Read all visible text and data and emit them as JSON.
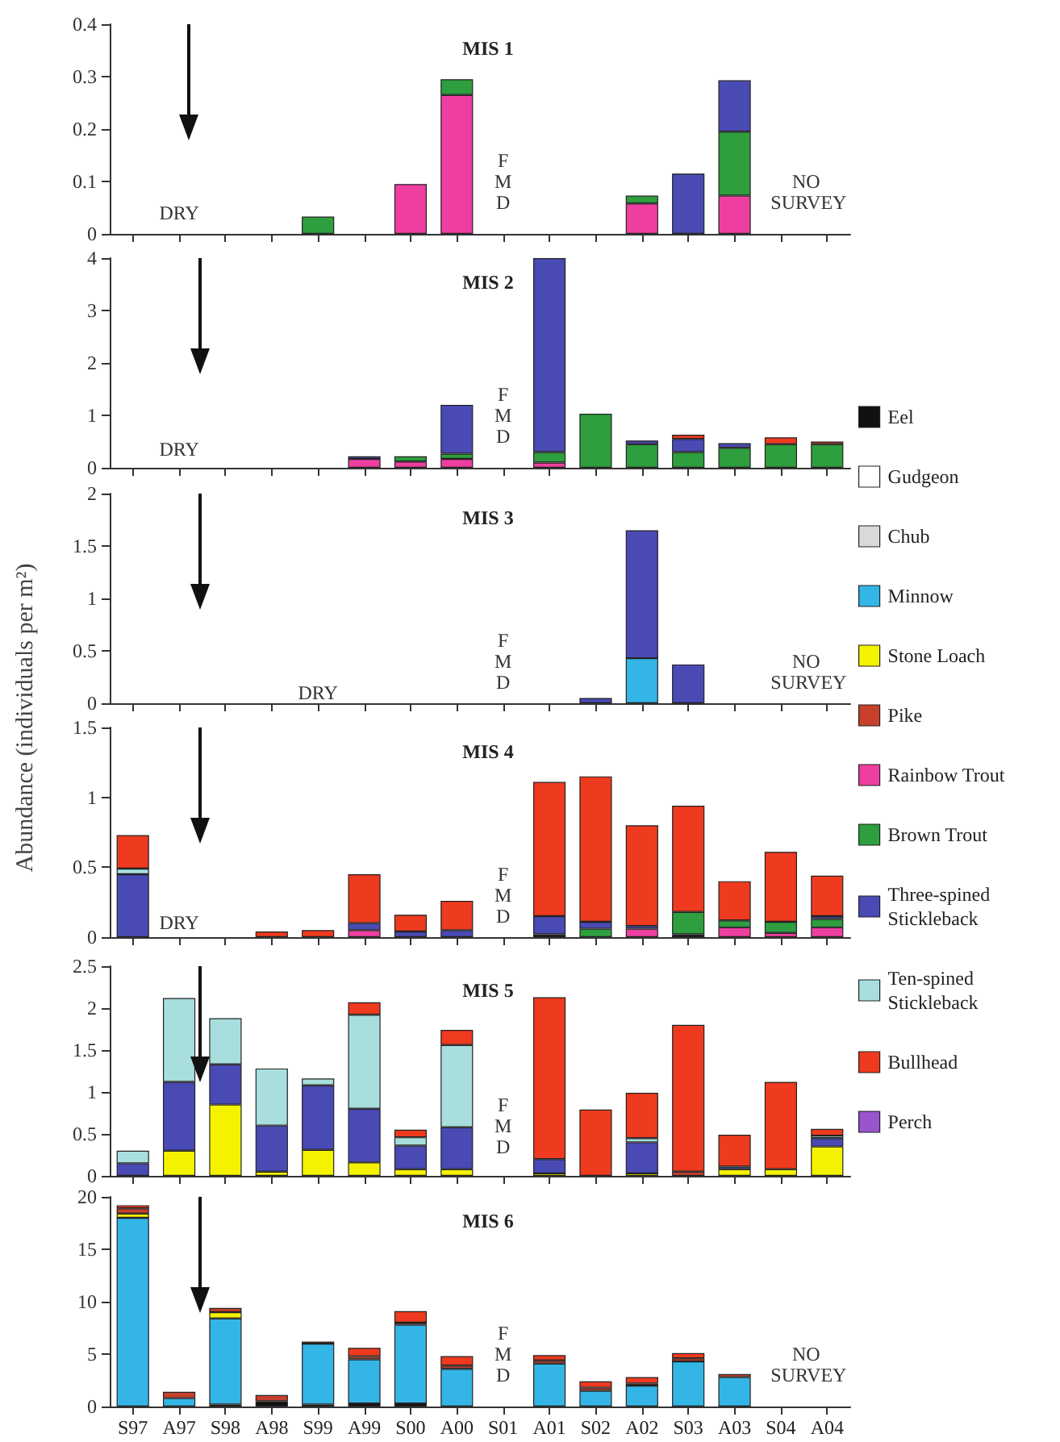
{
  "chart_data": [
    {
      "type": "bar",
      "stacked": true,
      "title": "MIS 1",
      "tick_labels": "y",
      "categories": [
        null,
        null,
        null,
        null,
        null,
        null,
        null,
        null,
        null,
        null,
        null,
        null,
        null,
        null,
        null,
        null
      ],
      "ylim": [
        0,
        0.4
      ],
      "yticks": [
        0,
        0.1,
        0.2,
        0.3,
        0.4
      ],
      "series": [
        {
          "color": "#ee3fa0",
          "values": [
            null,
            null,
            null,
            null,
            null,
            null,
            0.095,
            0.265,
            null,
            null,
            null,
            0.058,
            null,
            0.073,
            null,
            null
          ]
        },
        {
          "color": "#2e9e3e",
          "values": [
            null,
            null,
            null,
            null,
            0.033,
            null,
            null,
            0.03,
            null,
            null,
            null,
            0.015,
            null,
            0.122,
            null,
            null
          ]
        },
        {
          "color": "#4a4ab5",
          "values": [
            null,
            null,
            null,
            null,
            null,
            null,
            null,
            null,
            null,
            null,
            null,
            null,
            0.115,
            0.098,
            null,
            null
          ]
        }
      ],
      "annotations": [
        "DRY",
        "F\nM\nD",
        "NO SURVEY"
      ]
    },
    {
      "type": "bar",
      "stacked": true,
      "title": "MIS 2",
      "tick_labels": "y",
      "legend": "right",
      "ylabel": "Abundance (individuals per m²)",
      "categories": [
        null,
        null,
        null,
        null,
        null,
        null,
        null,
        null,
        null,
        null,
        null,
        null,
        null,
        null,
        null,
        null
      ],
      "ylim": [
        0,
        4
      ],
      "yticks": [
        0,
        1,
        2,
        3,
        4
      ],
      "series": [
        {
          "name": "Eel",
          "color": "#111111",
          "values": [
            null,
            null,
            null,
            null,
            null,
            null,
            null,
            null,
            null,
            null,
            null,
            null,
            null,
            null,
            null,
            null
          ]
        },
        {
          "name": "Gudgeon",
          "color": "#ffffff",
          "values": [
            null,
            null,
            null,
            null,
            null,
            null,
            null,
            null,
            null,
            null,
            null,
            null,
            null,
            null,
            null,
            null
          ]
        },
        {
          "name": "Chub",
          "color": "#d9d9d9",
          "values": [
            null,
            null,
            null,
            null,
            null,
            null,
            null,
            null,
            null,
            null,
            null,
            null,
            null,
            null,
            null,
            null
          ]
        },
        {
          "name": "Minnow",
          "color": "#33b5e5",
          "values": [
            null,
            null,
            null,
            null,
            null,
            null,
            null,
            null,
            null,
            null,
            null,
            null,
            null,
            null,
            null,
            null
          ]
        },
        {
          "name": "Stone Loach",
          "color": "#f5f200",
          "values": [
            null,
            null,
            null,
            null,
            null,
            null,
            null,
            null,
            null,
            null,
            null,
            null,
            null,
            null,
            null,
            null
          ]
        },
        {
          "name": "Pike",
          "color": "#c8402c",
          "values": [
            null,
            null,
            null,
            null,
            null,
            null,
            null,
            null,
            null,
            null,
            null,
            null,
            null,
            null,
            null,
            null
          ]
        },
        {
          "name": "Rainbow Trout",
          "color": "#ee3fa0",
          "values": [
            null,
            null,
            null,
            null,
            null,
            0.17,
            0.12,
            0.17,
            null,
            0.1,
            null,
            null,
            null,
            null,
            null,
            null
          ]
        },
        {
          "name": "Brown Trout",
          "color": "#2e9e3e",
          "values": [
            null,
            null,
            null,
            null,
            null,
            null,
            0.1,
            0.1,
            null,
            0.2,
            1.03,
            0.45,
            0.3,
            0.38,
            0.45,
            0.45
          ]
        },
        {
          "name": "Three-spined Stickleback",
          "color": "#4a4ab5",
          "values": [
            null,
            null,
            null,
            null,
            null,
            0.05,
            null,
            0.93,
            null,
            3.7,
            null,
            0.07,
            0.25,
            0.09,
            null,
            null
          ]
        },
        {
          "name": "Ten-spined Stickleback",
          "color": "#a8dede",
          "values": [
            null,
            null,
            null,
            null,
            null,
            null,
            null,
            null,
            null,
            null,
            null,
            null,
            null,
            null,
            null,
            null
          ]
        },
        {
          "name": "Bullhead",
          "color": "#ee3a1e",
          "values": [
            null,
            null,
            null,
            null,
            null,
            null,
            null,
            null,
            null,
            null,
            null,
            null,
            0.08,
            null,
            0.13,
            0.05
          ]
        },
        {
          "name": "Perch",
          "color": "#9955cc",
          "values": [
            null,
            null,
            null,
            null,
            null,
            null,
            null,
            null,
            null,
            null,
            null,
            null,
            null,
            null,
            null,
            null
          ]
        }
      ],
      "annotations": [
        "DRY",
        "F\nM\nD"
      ]
    },
    {
      "type": "bar",
      "stacked": true,
      "title": "MIS 3",
      "tick_labels": "y",
      "categories": [
        null,
        null,
        null,
        null,
        null,
        null,
        null,
        null,
        null,
        null,
        null,
        null,
        null,
        null,
        null,
        null
      ],
      "ylim": [
        0,
        2
      ],
      "yticks": [
        0,
        0.5,
        1,
        1.5,
        2
      ],
      "series": [
        {
          "color": "#33b5e5",
          "values": [
            null,
            null,
            null,
            null,
            null,
            null,
            null,
            null,
            null,
            null,
            null,
            0.43,
            null,
            null,
            null,
            null
          ]
        },
        {
          "color": "#4a4ab5",
          "values": [
            null,
            null,
            null,
            null,
            null,
            null,
            null,
            null,
            null,
            null,
            0.05,
            1.22,
            0.37,
            null,
            null,
            null
          ]
        }
      ],
      "annotations": [
        "DRY",
        "F\nM\nD",
        "NO SURVEY"
      ]
    },
    {
      "type": "bar",
      "stacked": true,
      "title": "MIS 4",
      "tick_labels": "y",
      "categories": [
        null,
        null,
        null,
        null,
        null,
        null,
        null,
        null,
        null,
        null,
        null,
        null,
        null,
        null,
        null,
        null
      ],
      "ylim": [
        0,
        1.5
      ],
      "yticks": [
        0,
        0.5,
        1,
        1.5
      ],
      "series": [
        {
          "color": "#111111",
          "values": [
            null,
            null,
            null,
            null,
            null,
            null,
            null,
            null,
            null,
            0.02,
            null,
            null,
            0.02,
            null,
            null,
            null
          ]
        },
        {
          "color": "#ee3fa0",
          "values": [
            null,
            null,
            null,
            null,
            null,
            0.05,
            null,
            null,
            null,
            null,
            null,
            0.06,
            null,
            0.07,
            0.03,
            0.07
          ]
        },
        {
          "color": "#2e9e3e",
          "values": [
            null,
            null,
            null,
            null,
            null,
            null,
            null,
            null,
            null,
            null,
            0.06,
            null,
            0.16,
            0.05,
            0.08,
            0.06
          ]
        },
        {
          "color": "#4a4ab5",
          "values": [
            0.45,
            null,
            null,
            null,
            null,
            0.05,
            0.04,
            0.05,
            null,
            0.13,
            0.05,
            0.02,
            null,
            null,
            null,
            0.02
          ]
        },
        {
          "color": "#a8dede",
          "values": [
            0.04,
            null,
            null,
            null,
            null,
            null,
            null,
            null,
            null,
            null,
            null,
            null,
            null,
            null,
            null,
            null
          ]
        },
        {
          "color": "#ee3a1e",
          "values": [
            0.24,
            null,
            null,
            0.04,
            0.05,
            0.35,
            0.12,
            0.21,
            null,
            0.96,
            1.04,
            0.72,
            0.76,
            0.28,
            0.5,
            0.29
          ]
        }
      ],
      "annotations": [
        "DRY",
        "F\nM\nD"
      ]
    },
    {
      "type": "bar",
      "stacked": true,
      "title": "MIS 5",
      "tick_labels": "y",
      "categories": [
        null,
        null,
        null,
        null,
        null,
        null,
        null,
        null,
        null,
        null,
        null,
        null,
        null,
        null,
        null,
        null
      ],
      "ylim": [
        0,
        2.5
      ],
      "yticks": [
        0,
        0.5,
        1,
        1.5,
        2,
        2.5
      ],
      "series": [
        {
          "color": "#f5f200",
          "values": [
            null,
            0.3,
            0.85,
            0.05,
            0.31,
            0.16,
            0.08,
            0.08,
            null,
            0.03,
            null,
            0.03,
            null,
            0.08,
            0.08,
            0.35
          ]
        },
        {
          "color": "#c8402c",
          "values": [
            null,
            null,
            null,
            null,
            null,
            null,
            null,
            null,
            null,
            null,
            null,
            null,
            0.05,
            null,
            null,
            null
          ]
        },
        {
          "color": "#4a4ab5",
          "values": [
            0.15,
            0.82,
            0.48,
            0.55,
            0.77,
            0.64,
            0.28,
            0.5,
            null,
            0.17,
            null,
            0.37,
            null,
            0.03,
            null,
            0.1
          ]
        },
        {
          "color": "#a8dede",
          "values": [
            0.15,
            1.0,
            0.55,
            0.68,
            0.08,
            1.12,
            0.1,
            0.98,
            null,
            null,
            null,
            0.05,
            null,
            null,
            null,
            0.03
          ]
        },
        {
          "color": "#ee3a1e",
          "values": [
            null,
            null,
            null,
            null,
            null,
            0.15,
            0.09,
            0.18,
            null,
            1.93,
            0.79,
            0.54,
            1.75,
            0.38,
            1.04,
            0.08
          ]
        }
      ],
      "annotations": [
        "F\nM\nD"
      ]
    },
    {
      "type": "bar",
      "stacked": true,
      "title": "MIS 6",
      "categories": [
        "S97",
        "A97",
        "S98",
        "A98",
        "S99",
        "A99",
        "S00",
        "A00",
        "S01",
        "A01",
        "S02",
        "A02",
        "S03",
        "A03",
        "S04",
        "A04"
      ],
      "ylim": [
        0,
        20
      ],
      "yticks": [
        0,
        5,
        10,
        15,
        20
      ],
      "series": [
        {
          "color": "#111111",
          "values": [
            null,
            null,
            0.2,
            0.5,
            0.2,
            0.3,
            0.3,
            null,
            null,
            null,
            null,
            null,
            null,
            null,
            null,
            null
          ]
        },
        {
          "color": "#33b5e5",
          "values": [
            18,
            0.8,
            8.2,
            null,
            5.8,
            4.2,
            7.5,
            3.6,
            null,
            4.1,
            1.5,
            2.0,
            4.3,
            2.8,
            null,
            null
          ]
        },
        {
          "color": "#f5f200",
          "values": [
            0.4,
            null,
            0.6,
            null,
            null,
            null,
            null,
            null,
            null,
            null,
            null,
            null,
            null,
            null,
            null,
            null
          ]
        },
        {
          "color": "#c8402c",
          "values": [
            0.5,
            0.6,
            0.4,
            0.6,
            0.2,
            0.3,
            0.2,
            0.3,
            null,
            0.3,
            0.3,
            0.2,
            0.3,
            0.3,
            null,
            null
          ]
        },
        {
          "color": "#ee3a1e",
          "values": [
            0.3,
            null,
            null,
            null,
            null,
            0.8,
            1.1,
            0.9,
            null,
            0.5,
            0.6,
            0.6,
            0.5,
            null,
            null,
            null
          ]
        }
      ],
      "annotations": [
        "F\nM\nD",
        "NO SURVEY"
      ]
    }
  ]
}
